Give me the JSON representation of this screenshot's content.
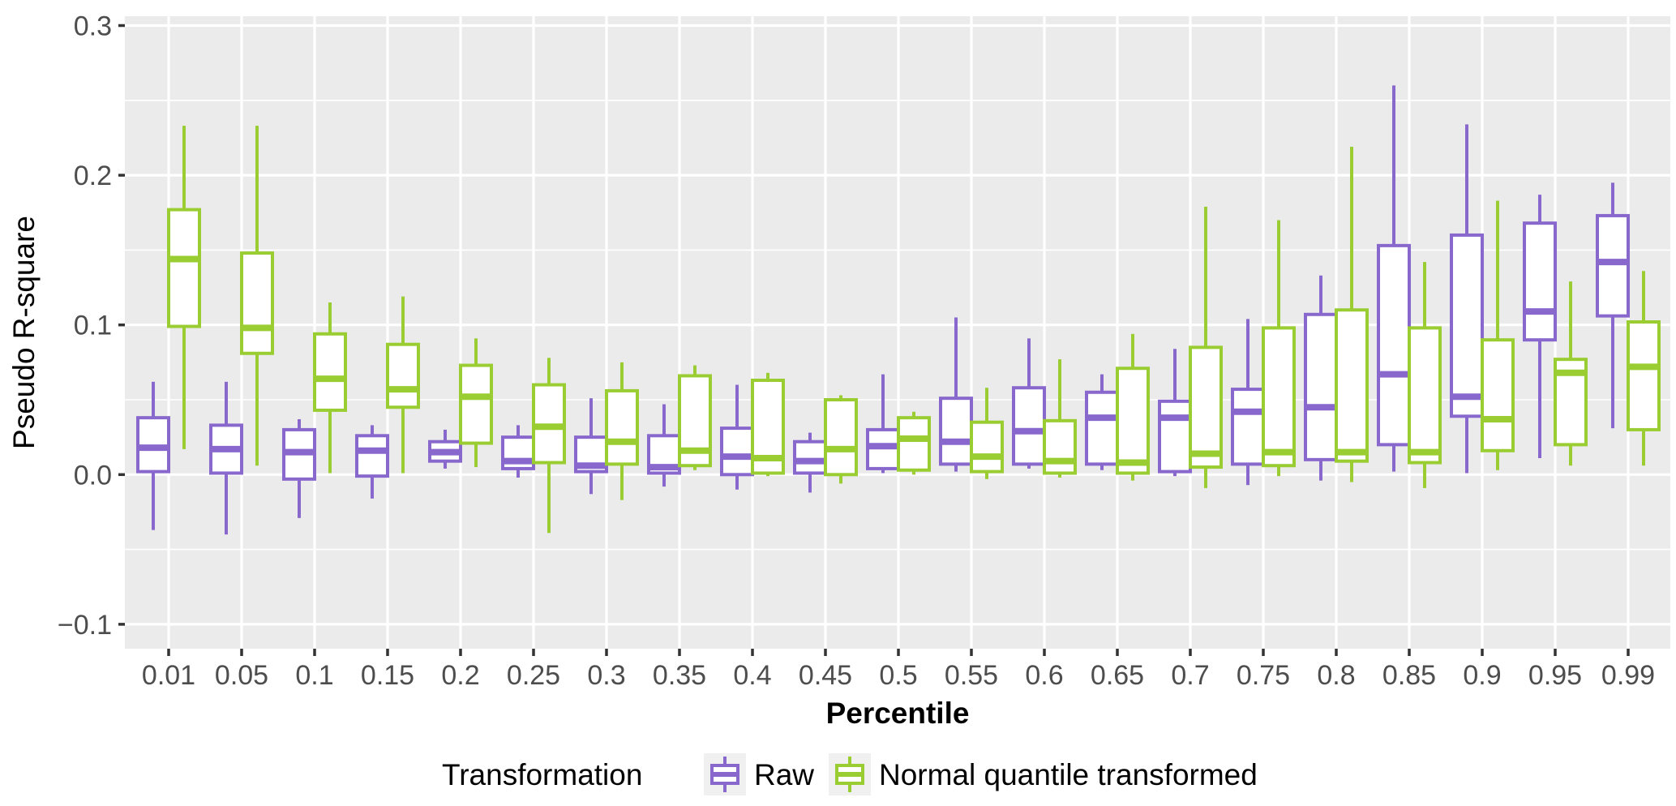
{
  "chart_data": {
    "type": "boxplot",
    "title": "",
    "xlabel": "Percentile",
    "ylabel": "Pseudo R-square",
    "orientation": "vertical-grouped-dodged",
    "panel": {
      "background": "#EBEBEB",
      "grid_color": "#FFFFFF",
      "grid": "major horizontal at 0.1 steps, minor horizontal at 0.05 steps, major vertical at each category",
      "tick_label_color": "#4D4D4D",
      "box_fill": "#FFFFFF"
    },
    "categories": [
      "0.01",
      "0.05",
      "0.1",
      "0.15",
      "0.2",
      "0.25",
      "0.3",
      "0.35",
      "0.4",
      "0.45",
      "0.5",
      "0.55",
      "0.6",
      "0.65",
      "0.7",
      "0.75",
      "0.8",
      "0.85",
      "0.9",
      "0.95",
      "0.99"
    ],
    "y_ticks": [
      -0.1,
      0.0,
      0.1,
      0.2,
      0.3
    ],
    "y_tick_labels": [
      "−0.1",
      "0.0",
      "0.1",
      "0.2",
      "0.3"
    ],
    "ylim": [
      -0.116,
      0.306
    ],
    "box_format": [
      "whisker_low",
      "q1",
      "median",
      "q3",
      "whisker_high"
    ],
    "series": [
      {
        "name": "Raw",
        "color": "#8968CD",
        "boxes": [
          [
            -0.037,
            0.002,
            0.018,
            0.038,
            0.062
          ],
          [
            -0.04,
            0.001,
            0.017,
            0.033,
            0.062
          ],
          [
            -0.029,
            -0.003,
            0.015,
            0.03,
            0.037
          ],
          [
            -0.016,
            -0.001,
            0.016,
            0.026,
            0.033
          ],
          [
            0.004,
            0.009,
            0.015,
            0.022,
            0.03
          ],
          [
            -0.002,
            0.004,
            0.009,
            0.025,
            0.033
          ],
          [
            -0.013,
            0.002,
            0.006,
            0.025,
            0.051
          ],
          [
            -0.008,
            0.001,
            0.005,
            0.026,
            0.047
          ],
          [
            -0.01,
            0.0,
            0.012,
            0.031,
            0.06
          ],
          [
            -0.012,
            0.001,
            0.009,
            0.022,
            0.028
          ],
          [
            0.001,
            0.004,
            0.019,
            0.03,
            0.067
          ],
          [
            0.002,
            0.007,
            0.022,
            0.051,
            0.105
          ],
          [
            0.004,
            0.007,
            0.029,
            0.058,
            0.091
          ],
          [
            0.003,
            0.007,
            0.038,
            0.055,
            0.067
          ],
          [
            -0.001,
            0.002,
            0.038,
            0.049,
            0.084
          ],
          [
            -0.007,
            0.007,
            0.042,
            0.057,
            0.104
          ],
          [
            -0.004,
            0.01,
            0.045,
            0.107,
            0.133
          ],
          [
            0.002,
            0.02,
            0.067,
            0.153,
            0.26
          ],
          [
            0.001,
            0.039,
            0.052,
            0.16,
            0.234
          ],
          [
            0.011,
            0.09,
            0.109,
            0.168,
            0.187
          ],
          [
            0.031,
            0.106,
            0.142,
            0.173,
            0.195
          ]
        ]
      },
      {
        "name": "Normal quantile transformed",
        "color": "#9ACD32",
        "boxes": [
          [
            0.017,
            0.099,
            0.144,
            0.177,
            0.233
          ],
          [
            0.006,
            0.081,
            0.098,
            0.148,
            0.233
          ],
          [
            0.001,
            0.043,
            0.064,
            0.094,
            0.115
          ],
          [
            0.001,
            0.045,
            0.057,
            0.087,
            0.119
          ],
          [
            0.005,
            0.021,
            0.052,
            0.073,
            0.091
          ],
          [
            -0.039,
            0.008,
            0.032,
            0.06,
            0.078
          ],
          [
            -0.017,
            0.007,
            0.022,
            0.056,
            0.075
          ],
          [
            0.003,
            0.006,
            0.016,
            0.066,
            0.073
          ],
          [
            -0.001,
            0.001,
            0.011,
            0.063,
            0.068
          ],
          [
            -0.006,
            0.0,
            0.017,
            0.05,
            0.053
          ],
          [
            0.0,
            0.003,
            0.024,
            0.038,
            0.042
          ],
          [
            -0.003,
            0.002,
            0.012,
            0.035,
            0.058
          ],
          [
            -0.002,
            0.001,
            0.009,
            0.036,
            0.077
          ],
          [
            -0.004,
            0.001,
            0.008,
            0.071,
            0.094
          ],
          [
            -0.009,
            0.005,
            0.014,
            0.085,
            0.179
          ],
          [
            -0.001,
            0.006,
            0.015,
            0.098,
            0.17
          ],
          [
            -0.005,
            0.009,
            0.015,
            0.11,
            0.219
          ],
          [
            -0.009,
            0.008,
            0.015,
            0.098,
            0.142
          ],
          [
            0.003,
            0.016,
            0.037,
            0.09,
            0.183
          ],
          [
            0.006,
            0.02,
            0.068,
            0.077,
            0.129
          ],
          [
            0.006,
            0.03,
            0.072,
            0.102,
            0.136
          ]
        ]
      }
    ],
    "legend": {
      "title": "Transformation",
      "position": "bottom-center",
      "key_background": "#F0F0F0",
      "entries": [
        {
          "label": "Raw",
          "color": "#8968CD"
        },
        {
          "label": "Normal quantile transformed",
          "color": "#9ACD32"
        }
      ]
    }
  }
}
